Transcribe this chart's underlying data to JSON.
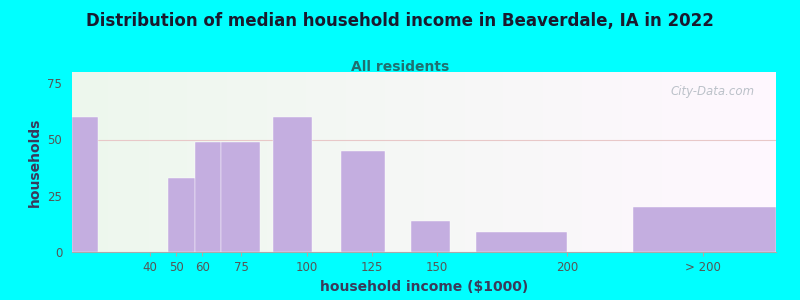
{
  "title": "Distribution of median household income in Beaverdale, IA in 2022",
  "subtitle": "All residents",
  "xlabel": "household income ($1000)",
  "ylabel": "households",
  "background_color": "#00FFFF",
  "bar_color": "#c4aee0",
  "bar_edge_color": "#c4aee0",
  "values": [
    60,
    33,
    49,
    49,
    60,
    45,
    14,
    9,
    20
  ],
  "bar_lefts": [
    10,
    47,
    57,
    67,
    87,
    113,
    140,
    165,
    225
  ],
  "bar_widths": [
    10,
    10,
    10,
    15,
    15,
    17,
    15,
    35,
    55
  ],
  "xlim": [
    10,
    280
  ],
  "ylim": [
    0,
    80
  ],
  "yticks": [
    0,
    25,
    50,
    75
  ],
  "xtick_positions": [
    40,
    50,
    60,
    75,
    100,
    125,
    150,
    200,
    252
  ],
  "xtick_labels": [
    "40",
    "50",
    "60",
    "75",
    "100",
    "125",
    "150",
    "200",
    "> 200"
  ],
  "title_fontsize": 12,
  "subtitle_fontsize": 10,
  "axis_label_fontsize": 10,
  "watermark_text": "City-Data.com",
  "watermark_color": "#b0b8c0",
  "subtitle_color": "#207070",
  "grid_color": "#e8c8c8",
  "tick_color": "#555555"
}
